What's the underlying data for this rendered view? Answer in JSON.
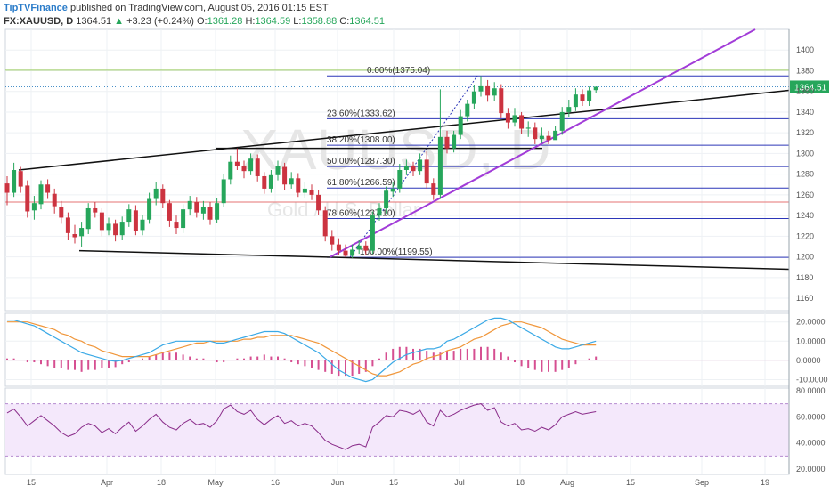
{
  "header": {
    "brand": "TipTVFinance",
    "published": " published on TradingView.com, August 05, 2016 01:15 EST",
    "symbol": "FX:XAUUSD, D",
    "last": "1364.51",
    "change": "+3.23 (+0.24%)",
    "open_label": "O:",
    "open": "1361.28",
    "high_label": "H:",
    "high": "1364.59",
    "low_label": "L:",
    "low": "1358.88",
    "close_label": "C:",
    "close": "1364.51"
  },
  "watermark": {
    "symbol": "XAUUSD, D",
    "name": "Gold / U.S. Dollar"
  },
  "colors": {
    "up": "#26a65b",
    "down": "#cc3340",
    "fib": "#2c36b8",
    "trend": "#a23cd8",
    "channel": "#111111",
    "macd": "#3aa9e6",
    "signal": "#f0963a",
    "hist": "#d64f91",
    "rsi": "#8a2c8a"
  },
  "chart_data": [
    {
      "type": "candlestick",
      "title": "XAUUSD, D",
      "x_ticks": [
        "15",
        "Apr",
        "18",
        "May",
        "16",
        "Jun",
        "15",
        "Jul",
        "18",
        "Aug",
        "15",
        "Sep",
        "19"
      ],
      "y_ticks": [
        1160,
        1180,
        1200,
        1220,
        1240,
        1260,
        1280,
        1300,
        1320,
        1340,
        1360,
        1380,
        1400
      ],
      "ylim": [
        1148,
        1420
      ],
      "last_price": 1364.51,
      "fibonacci": [
        {
          "label": "0.00%(1375.04)",
          "value": 1375.04
        },
        {
          "label": "23.60%(1333.62)",
          "value": 1333.62
        },
        {
          "label": "38.20%(1308.00)",
          "value": 1308.0
        },
        {
          "label": "50.00%(1287.30)",
          "value": 1287.3
        },
        {
          "label": "61.80%(1266.59)",
          "value": 1266.59
        },
        {
          "label": "78.60%(1237.10)",
          "value": 1237.1
        },
        {
          "label": "100.00%(1199.55)",
          "value": 1199.55
        }
      ],
      "levels": [
        1380.5,
        1253
      ],
      "candles": [
        [
          1271,
          1262,
          1278,
          1250
        ],
        [
          1262,
          1284,
          1291,
          1258
        ],
        [
          1283,
          1268,
          1287,
          1262
        ],
        [
          1269,
          1244,
          1274,
          1238
        ],
        [
          1245,
          1252,
          1259,
          1236
        ],
        [
          1251,
          1270,
          1274,
          1246
        ],
        [
          1270,
          1262,
          1275,
          1256
        ],
        [
          1261,
          1249,
          1266,
          1242
        ],
        [
          1248,
          1238,
          1254,
          1232
        ],
        [
          1238,
          1223,
          1243,
          1216
        ],
        [
          1222,
          1219,
          1231,
          1213
        ],
        [
          1220,
          1228,
          1234,
          1210
        ],
        [
          1227,
          1247,
          1252,
          1222
        ],
        [
          1247,
          1243,
          1253,
          1238
        ],
        [
          1243,
          1226,
          1247,
          1220
        ],
        [
          1226,
          1232,
          1238,
          1221
        ],
        [
          1232,
          1221,
          1236,
          1215
        ],
        [
          1221,
          1234,
          1239,
          1216
        ],
        [
          1234,
          1246,
          1251,
          1229
        ],
        [
          1245,
          1225,
          1250,
          1221
        ],
        [
          1226,
          1236,
          1241,
          1221
        ],
        [
          1236,
          1256,
          1262,
          1232
        ],
        [
          1256,
          1266,
          1272,
          1250
        ],
        [
          1266,
          1252,
          1270,
          1247
        ],
        [
          1252,
          1235,
          1255,
          1229
        ],
        [
          1234,
          1228,
          1240,
          1222
        ],
        [
          1228,
          1246,
          1251,
          1223
        ],
        [
          1246,
          1254,
          1259,
          1240
        ],
        [
          1253,
          1243,
          1258,
          1238
        ],
        [
          1242,
          1248,
          1254,
          1236
        ],
        [
          1248,
          1236,
          1253,
          1231
        ],
        [
          1236,
          1252,
          1257,
          1233
        ],
        [
          1252,
          1275,
          1280,
          1248
        ],
        [
          1275,
          1292,
          1298,
          1270
        ],
        [
          1292,
          1288,
          1305,
          1284
        ],
        [
          1288,
          1283,
          1293,
          1276
        ],
        [
          1283,
          1295,
          1300,
          1279
        ],
        [
          1295,
          1278,
          1299,
          1273
        ],
        [
          1278,
          1266,
          1282,
          1261
        ],
        [
          1266,
          1279,
          1284,
          1262
        ],
        [
          1279,
          1288,
          1293,
          1274
        ],
        [
          1287,
          1270,
          1291,
          1265
        ],
        [
          1270,
          1276,
          1282,
          1266
        ],
        [
          1276,
          1262,
          1281,
          1258
        ],
        [
          1262,
          1266,
          1272,
          1257
        ],
        [
          1265,
          1260,
          1270,
          1255
        ],
        [
          1260,
          1245,
          1265,
          1241
        ],
        [
          1245,
          1220,
          1249,
          1215
        ],
        [
          1220,
          1212,
          1226,
          1206
        ],
        [
          1212,
          1206,
          1218,
          1202
        ],
        [
          1206,
          1201,
          1212,
          1199.55
        ],
        [
          1201,
          1207,
          1212,
          1199
        ],
        [
          1207,
          1211,
          1216,
          1203
        ],
        [
          1211,
          1206,
          1215,
          1202
        ],
        [
          1206,
          1240,
          1244,
          1203
        ],
        [
          1240,
          1247,
          1252,
          1235
        ],
        [
          1247,
          1264,
          1268,
          1242
        ],
        [
          1263,
          1266,
          1272,
          1258
        ],
        [
          1266,
          1284,
          1290,
          1262
        ],
        [
          1284,
          1288,
          1294,
          1279
        ],
        [
          1288,
          1283,
          1292,
          1278
        ],
        [
          1283,
          1294,
          1300,
          1279
        ],
        [
          1294,
          1271,
          1302,
          1266
        ],
        [
          1271,
          1260,
          1276,
          1255
        ],
        [
          1260,
          1316,
          1362,
          1256
        ],
        [
          1316,
          1305,
          1322,
          1300
        ],
        [
          1305,
          1318,
          1322,
          1301
        ],
        [
          1318,
          1336,
          1342,
          1314
        ],
        [
          1336,
          1348,
          1352,
          1331
        ],
        [
          1348,
          1360,
          1366,
          1343
        ],
        [
          1360,
          1365,
          1375,
          1355
        ],
        [
          1365,
          1356,
          1371,
          1350
        ],
        [
          1356,
          1363,
          1369,
          1351
        ],
        [
          1363,
          1339,
          1367,
          1334
        ],
        [
          1339,
          1330,
          1344,
          1324
        ],
        [
          1330,
          1337,
          1344,
          1326
        ],
        [
          1337,
          1324,
          1340,
          1319
        ],
        [
          1324,
          1325,
          1331,
          1316
        ],
        [
          1325,
          1314,
          1330,
          1309
        ],
        [
          1314,
          1317,
          1325,
          1310
        ],
        [
          1317,
          1313,
          1322,
          1309
        ],
        [
          1313,
          1322,
          1327,
          1315
        ],
        [
          1322,
          1340,
          1345,
          1318
        ],
        [
          1340,
          1345,
          1352,
          1335
        ],
        [
          1345,
          1357,
          1363,
          1341
        ],
        [
          1357,
          1351,
          1362,
          1346
        ],
        [
          1351,
          1361,
          1364.59,
          1346
        ],
        [
          1361.28,
          1364.51,
          1364.59,
          1358.88
        ]
      ],
      "xlabel": "",
      "ylabel": ""
    },
    {
      "type": "line",
      "name": "MACD",
      "y_ticks": [
        -10,
        0,
        10,
        20
      ],
      "y_tick_labels": [
        "-10.0000",
        "0.0000",
        "10.0000",
        "20.0000"
      ],
      "ylim": [
        -13.5,
        24.5
      ],
      "macd": [
        21,
        21,
        20,
        19,
        18,
        16,
        14,
        12,
        10,
        8,
        6,
        4,
        3,
        2,
        1,
        0,
        -0.5,
        0,
        1,
        2,
        3,
        4,
        6,
        8,
        9,
        10,
        10,
        10,
        10,
        10,
        10,
        9,
        9,
        10,
        11,
        12,
        13,
        14,
        15,
        15,
        15,
        14,
        12,
        10,
        8,
        6,
        4,
        1,
        -2,
        -5,
        -7,
        -9,
        -10,
        -11,
        -10,
        -7,
        -4,
        -1,
        1,
        3,
        4,
        5,
        6,
        6,
        7,
        10,
        11,
        13,
        15,
        17,
        19,
        21,
        22,
        22,
        21,
        19,
        17,
        15,
        13,
        11,
        9,
        7,
        6,
        6,
        7,
        8,
        9,
        10
      ],
      "signal": [
        20,
        20,
        20,
        20,
        19,
        18,
        17,
        16,
        14,
        13,
        11,
        10,
        8,
        7,
        5,
        4,
        3,
        2,
        2,
        2,
        2,
        2,
        3,
        4,
        5,
        6,
        7,
        8,
        9,
        9,
        10,
        10,
        10,
        10,
        10,
        11,
        11,
        12,
        12,
        13,
        13,
        13,
        13,
        12,
        11,
        10,
        9,
        7,
        5,
        3,
        1,
        -1,
        -3,
        -5,
        -7,
        -8,
        -8,
        -7,
        -6,
        -4,
        -2,
        -1,
        1,
        2,
        3,
        5,
        6,
        7,
        9,
        11,
        12,
        14,
        16,
        18,
        19,
        20,
        20,
        19,
        18,
        17,
        15,
        13,
        11,
        10,
        9,
        8,
        8,
        8
      ],
      "histogram": [
        1,
        1,
        0,
        -1,
        -1,
        -2,
        -3,
        -4,
        -4,
        -5,
        -5,
        -6,
        -5,
        -5,
        -4,
        -4,
        -3.5,
        -2,
        -1,
        0,
        1,
        2,
        3,
        4,
        4,
        4,
        3,
        2,
        1,
        1,
        0,
        -1,
        -1,
        0,
        1,
        1,
        2,
        2,
        3,
        2,
        2,
        1,
        -1,
        -2,
        -3,
        -4,
        -5,
        -6,
        -7,
        -8,
        -8,
        -8,
        -7,
        -6,
        -3,
        1,
        4,
        6,
        7,
        7,
        6,
        6,
        5,
        4,
        4,
        5,
        5,
        6,
        6,
        6,
        7,
        7,
        6,
        4,
        2,
        -1,
        -3,
        -4,
        -5,
        -6,
        -6,
        -6,
        -5,
        -4,
        -2,
        0,
        1,
        2
      ]
    },
    {
      "type": "line",
      "name": "RSI",
      "y_ticks": [
        20,
        40,
        60,
        80
      ],
      "y_tick_labels": [
        "20.0000",
        "40.0000",
        "60.0000",
        "80.0000"
      ],
      "ylim": [
        16,
        82
      ],
      "band": [
        30,
        70
      ],
      "values": [
        63,
        66,
        60,
        53,
        57,
        61,
        57,
        53,
        48,
        45,
        47,
        52,
        55,
        53,
        48,
        51,
        47,
        52,
        56,
        49,
        53,
        58,
        62,
        56,
        52,
        50,
        55,
        58,
        54,
        55,
        52,
        57,
        66,
        69,
        64,
        62,
        65,
        58,
        54,
        58,
        61,
        55,
        57,
        53,
        55,
        53,
        48,
        42,
        39,
        37,
        35,
        38,
        39,
        37,
        52,
        56,
        61,
        60,
        65,
        64,
        62,
        65,
        56,
        53,
        65,
        60,
        62,
        65,
        67,
        69,
        70,
        65,
        67,
        56,
        53,
        55,
        50,
        51,
        49,
        52,
        50,
        54,
        60,
        62,
        64,
        62,
        63,
        64
      ]
    }
  ]
}
